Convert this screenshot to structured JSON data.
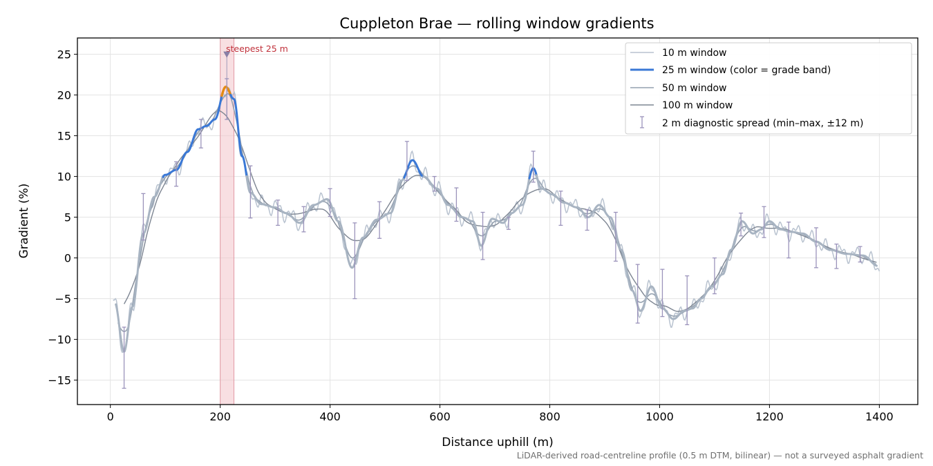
{
  "chart_data": {
    "type": "line",
    "title": "Cuppleton Brae — rolling window gradients",
    "xlabel": "Distance uphill (m)",
    "ylabel": "Gradient (%)",
    "xlim": [
      -60,
      1470
    ],
    "ylim": [
      -18,
      27
    ],
    "xticks": [
      0,
      200,
      400,
      600,
      800,
      1000,
      1200,
      1400
    ],
    "yticks": [
      -15,
      -10,
      -5,
      0,
      5,
      10,
      15,
      20,
      25
    ],
    "grid": true,
    "legend_position": "top-right",
    "footnote": "LiDAR-derived road-centreline profile (0.5 m DTM, bilinear) — not a surveyed asphalt gradient",
    "colors": {
      "w10": "#b8c2cf",
      "w25_base": "#a8b4c2",
      "w25_steep": "#3a78d6",
      "w25_very_steep": "#e58a12",
      "w50": "#94a0af",
      "w100": "#7d8592",
      "errorbar": "#9b93bb",
      "highlight": "#e06070",
      "annotation": "#c0303a"
    },
    "highlight": {
      "x_range": [
        200,
        225
      ],
      "label": "steepest 25 m",
      "marker_x": 212,
      "marker_y": 25
    },
    "anchors": [
      [
        8,
        -5.5
      ],
      [
        25,
        -11.5
      ],
      [
        40,
        -6
      ],
      [
        60,
        3
      ],
      [
        80,
        7.5
      ],
      [
        100,
        10.2
      ],
      [
        120,
        10.8
      ],
      [
        140,
        13
      ],
      [
        160,
        15.8
      ],
      [
        175,
        16.2
      ],
      [
        190,
        17
      ],
      [
        210,
        21
      ],
      [
        225,
        19.5
      ],
      [
        240,
        12.5
      ],
      [
        255,
        8
      ],
      [
        275,
        6.6
      ],
      [
        300,
        6.2
      ],
      [
        320,
        5.5
      ],
      [
        345,
        4.3
      ],
      [
        370,
        6.5
      ],
      [
        395,
        7.2
      ],
      [
        415,
        4.5
      ],
      [
        440,
        -1.2
      ],
      [
        460,
        2.5
      ],
      [
        485,
        4.7
      ],
      [
        510,
        5.5
      ],
      [
        530,
        9.5
      ],
      [
        550,
        12
      ],
      [
        570,
        10
      ],
      [
        595,
        8.5
      ],
      [
        615,
        6.5
      ],
      [
        640,
        5
      ],
      [
        660,
        4.5
      ],
      [
        675,
        1.5
      ],
      [
        695,
        4.8
      ],
      [
        715,
        4.3
      ],
      [
        730,
        5.5
      ],
      [
        750,
        6.5
      ],
      [
        770,
        11
      ],
      [
        785,
        8.5
      ],
      [
        805,
        7.8
      ],
      [
        825,
        6.8
      ],
      [
        850,
        6.2
      ],
      [
        870,
        5
      ],
      [
        890,
        6.5
      ],
      [
        910,
        5
      ],
      [
        930,
        1
      ],
      [
        950,
        -4
      ],
      [
        965,
        -6.5
      ],
      [
        985,
        -3.5
      ],
      [
        1005,
        -6.2
      ],
      [
        1025,
        -7.5
      ],
      [
        1045,
        -6.5
      ],
      [
        1060,
        -6.2
      ],
      [
        1075,
        -5
      ],
      [
        1095,
        -3.5
      ],
      [
        1115,
        -2
      ],
      [
        1130,
        1
      ],
      [
        1150,
        4.5
      ],
      [
        1170,
        3
      ],
      [
        1185,
        3.5
      ],
      [
        1200,
        4.5
      ],
      [
        1220,
        3.5
      ],
      [
        1240,
        3.2
      ],
      [
        1260,
        3
      ],
      [
        1285,
        2
      ],
      [
        1310,
        1
      ],
      [
        1340,
        0.5
      ],
      [
        1370,
        0.3
      ],
      [
        1398,
        -1
      ]
    ],
    "series": [
      {
        "name": "10 m window",
        "style": "thin-light"
      },
      {
        "name": "25 m window (color = grade band)",
        "style": "thick-banded"
      },
      {
        "name": "50 m window",
        "style": "medium"
      },
      {
        "name": "100 m window",
        "style": "thin-dark"
      }
    ],
    "errorbar_name": "2 m diagnostic spread (min–max, ±12 m)",
    "errorbars": [
      [
        25,
        -11.5,
        -16,
        -8.5
      ],
      [
        60,
        5.2,
        2.2,
        7.9
      ],
      [
        120,
        10.4,
        8.8,
        11.8
      ],
      [
        165,
        15.6,
        13.5,
        17
      ],
      [
        212,
        20,
        17,
        22
      ],
      [
        255,
        7.2,
        4.9,
        11.3
      ],
      [
        305,
        5.6,
        4,
        7.1
      ],
      [
        352,
        4.3,
        3.2,
        6.3
      ],
      [
        400,
        6.8,
        5.1,
        8.5
      ],
      [
        445,
        0.5,
        -5,
        4.3
      ],
      [
        490,
        4.2,
        2.4,
        6.9
      ],
      [
        540,
        11.2,
        9.5,
        14.3
      ],
      [
        590,
        9,
        8.2,
        10
      ],
      [
        630,
        6,
        4.5,
        8.6
      ],
      [
        678,
        2,
        -0.2,
        5.6
      ],
      [
        725,
        4.2,
        3.5,
        5
      ],
      [
        770,
        10.2,
        9.3,
        13.1
      ],
      [
        820,
        7,
        4,
        8.2
      ],
      [
        868,
        5,
        3.4,
        5.9
      ],
      [
        920,
        2.5,
        -0.4,
        5.6
      ],
      [
        960,
        -4.5,
        -8,
        -0.8
      ],
      [
        1005,
        -4.5,
        -7.2,
        -1.4
      ],
      [
        1050,
        -5.5,
        -8.2,
        -2.2
      ],
      [
        1100,
        -2.5,
        -4.4,
        0
      ],
      [
        1148,
        4.3,
        2.7,
        5.5
      ],
      [
        1190,
        4,
        2.5,
        6.3
      ],
      [
        1235,
        2.2,
        0,
        4.4
      ],
      [
        1285,
        1.8,
        -1.2,
        3.7
      ],
      [
        1322,
        0.5,
        -1.3,
        1.7
      ],
      [
        1365,
        0.2,
        -0.5,
        1.4
      ]
    ]
  }
}
